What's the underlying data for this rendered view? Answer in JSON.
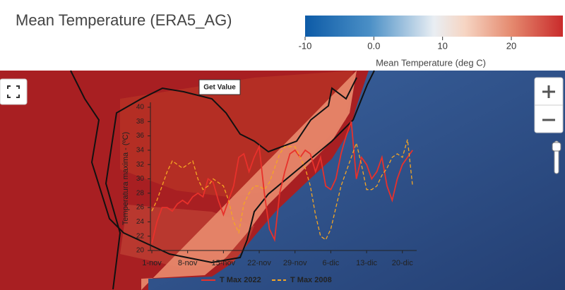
{
  "header": {
    "title": "Mean Temperature (ERA5_AG)"
  },
  "colorbar": {
    "lim": [
      -10,
      27.5
    ],
    "ticks": [
      -10,
      {
        "value": 0,
        "label": "0.0"
      },
      10,
      20
    ],
    "label": "Mean Temperature (deg C)"
  },
  "button": {
    "label": "Get Value"
  },
  "chart_data": {
    "type": "line",
    "y_label": "Temperatura maxima - (ºC)",
    "categories": [
      "1-nov",
      null,
      null,
      null,
      null,
      null,
      null,
      "8-nov",
      null,
      null,
      null,
      null,
      null,
      null,
      "15-nov",
      null,
      null,
      null,
      null,
      null,
      null,
      "22-nov",
      null,
      null,
      null,
      null,
      null,
      null,
      "29-nov",
      null,
      null,
      null,
      null,
      null,
      null,
      "6-dic",
      null,
      null,
      null,
      null,
      null,
      null,
      "13-dic",
      null,
      null,
      null,
      null,
      null,
      null,
      "20-dic",
      null,
      null
    ],
    "series": [
      {
        "name": "T Max 2022",
        "color": "#e8312b",
        "dash": false,
        "values": [
          21,
          24,
          26,
          26,
          25.5,
          26.5,
          27,
          26.5,
          27.5,
          28,
          27.5,
          30,
          29.5,
          27,
          25,
          27,
          29,
          33,
          33.5,
          31,
          33,
          34.5,
          28,
          23,
          21.5,
          28,
          31,
          33.5,
          34,
          33,
          34,
          33.5,
          31,
          33,
          29,
          28.5,
          30,
          33.5,
          36,
          38,
          30,
          33,
          32,
          30,
          31,
          33,
          29,
          27,
          30,
          32,
          33,
          34
        ]
      },
      {
        "name": "T Max 2008",
        "color": "#f5a623",
        "dash": true,
        "values": [
          25.5,
          27,
          29,
          31,
          32.5,
          32,
          31.5,
          32,
          32.5,
          30,
          28.5,
          29,
          30,
          29.5,
          29,
          27,
          24,
          22.5,
          26.5,
          28,
          29,
          29,
          28.5,
          29.5,
          31.5,
          33.5,
          34.5,
          34.5,
          34.5,
          33,
          31.5,
          29,
          25,
          22,
          21.5,
          23,
          26,
          29,
          31,
          33,
          35,
          32,
          28.5,
          28.5,
          29,
          30.5,
          31.5,
          33,
          33.5,
          33,
          35.5,
          29
        ]
      }
    ],
    "ylim": [
      20,
      40
    ],
    "yticks": [
      20,
      22,
      24,
      26,
      28,
      30,
      32,
      34,
      36,
      38,
      40
    ]
  }
}
